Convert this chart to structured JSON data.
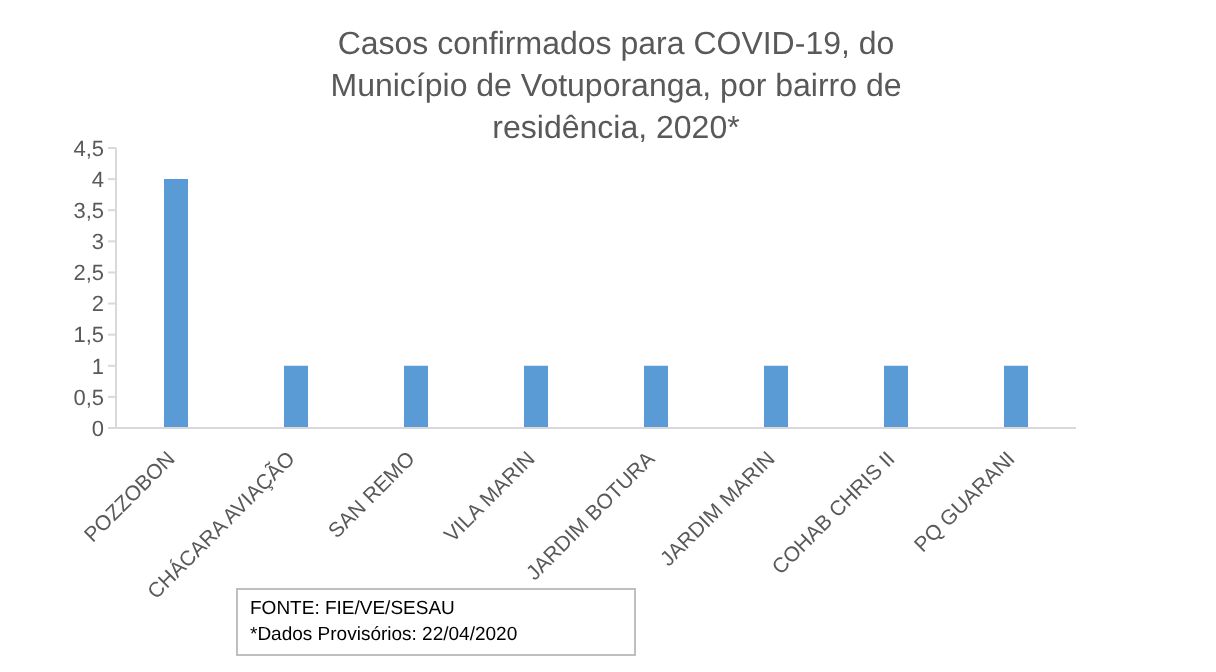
{
  "chart_data": {
    "type": "bar",
    "title": "Casos confirmados para COVID-19, do Município de Votuporanga, por bairro de residência, 2020*",
    "categories": [
      "POZZOBON",
      "CHÁCARA AVIAÇÃO",
      "SAN REMO",
      "VILA MARIN",
      "JARDIM BOTURA",
      "JARDIM MARIN",
      "COHAB CHRIS II",
      "PQ GUARANI"
    ],
    "values": [
      4,
      1,
      1,
      1,
      1,
      1,
      1,
      1
    ],
    "color": "#5b9bd5",
    "ylim": [
      0,
      4.5
    ],
    "yticks": [
      0,
      {
        "value": 0.5,
        "label": "0,5"
      },
      1,
      {
        "value": 1.5,
        "label": "1,5"
      },
      2,
      {
        "value": 2.5,
        "label": "2,5"
      },
      3,
      {
        "value": 3.5,
        "label": "3,5"
      },
      4,
      {
        "value": 4.5,
        "label": "4,5"
      }
    ],
    "grid": false,
    "legend": false,
    "annotations": [
      "FONTE: FIE/VE/SESAU",
      "*Dados Provisórios: 22/04/2020"
    ]
  }
}
